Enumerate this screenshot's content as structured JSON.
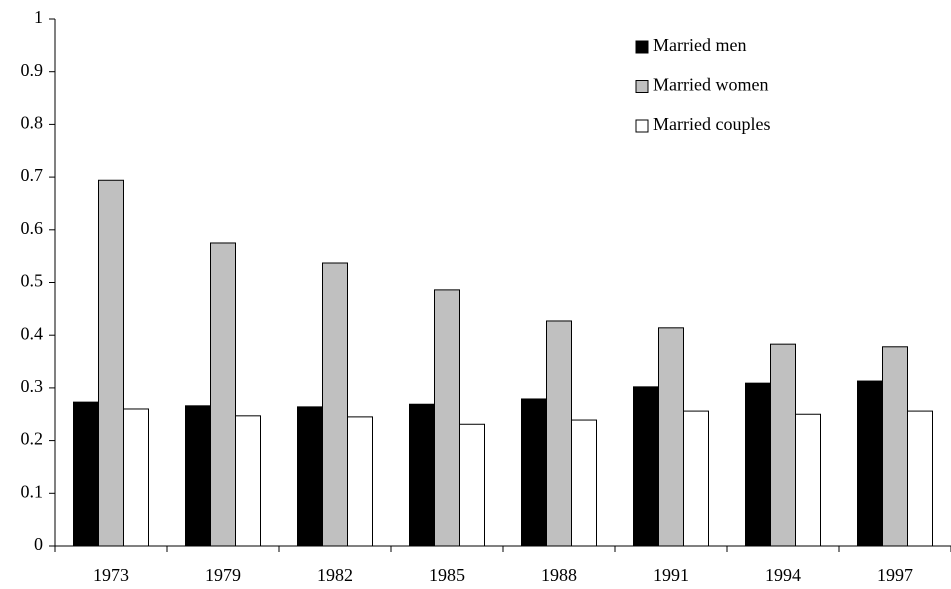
{
  "chart_data": {
    "type": "bar",
    "categories": [
      "1973",
      "1979",
      "1982",
      "1985",
      "1988",
      "1991",
      "1994",
      "1997"
    ],
    "series": [
      {
        "name": "Married men",
        "color": "#000000",
        "values": [
          0.273,
          0.266,
          0.264,
          0.269,
          0.279,
          0.302,
          0.309,
          0.313
        ]
      },
      {
        "name": "Married women",
        "color": "#c0c0c0",
        "values": [
          0.694,
          0.575,
          0.537,
          0.486,
          0.427,
          0.414,
          0.383,
          0.378
        ]
      },
      {
        "name": "Married couples",
        "color": "#ffffff",
        "values": [
          0.26,
          0.247,
          0.245,
          0.231,
          0.239,
          0.256,
          0.25,
          0.256
        ]
      }
    ],
    "ylim": [
      0,
      1
    ],
    "yticks": [
      0,
      0.1,
      0.2,
      0.3,
      0.4,
      0.5,
      0.6,
      0.7,
      0.8,
      0.9,
      1
    ],
    "grid": false,
    "legend": "top-right"
  }
}
